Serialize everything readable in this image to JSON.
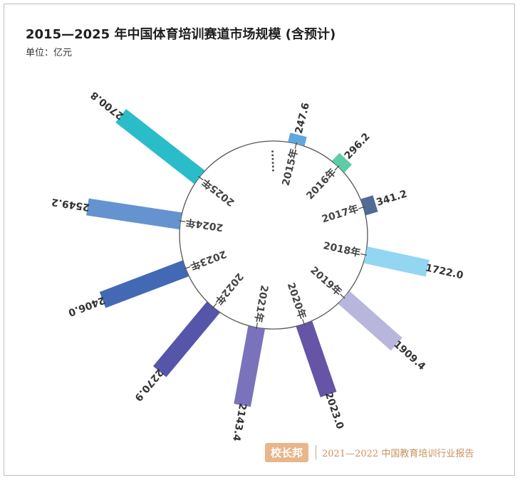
{
  "header": {
    "title": "2015—2025 年中国体育培训赛道市场规模 (含预计)",
    "unit": "单位：亿元"
  },
  "chart_data": {
    "type": "bar",
    "layout": "radial",
    "title": "2015—2025 年中国体育培训赛道市场规模 (含预计)",
    "ylabel": "单位：亿元",
    "gap_label": "......",
    "categories": [
      "2015年",
      "2016年",
      "2017年",
      "2018年",
      "2019年",
      "2020年",
      "2021年",
      "2022年",
      "2023年",
      "2024年",
      "2025年"
    ],
    "values": [
      247.6,
      296.2,
      341.2,
      1722.0,
      1909.4,
      2023.0,
      2143.4,
      2270.9,
      2406.0,
      2549.2,
      2700.8
    ],
    "value_labels": [
      "247.6",
      "296.2",
      "341.2",
      "1722.0",
      "1909.4",
      "2023.0",
      "2143.4",
      "2270.9",
      "2406.0",
      "2549.2",
      "2700.8"
    ],
    "colors": [
      "#5fa8dd",
      "#5fcca7",
      "#516b94",
      "#93d6f2",
      "#b8b6dc",
      "#6654a6",
      "#7a72ba",
      "#5555a9",
      "#4469b4",
      "#6593d0",
      "#2bbcc9"
    ]
  },
  "footer": {
    "logo": "校长邦",
    "report": "2021—2022 中国教育培训行业报告"
  }
}
